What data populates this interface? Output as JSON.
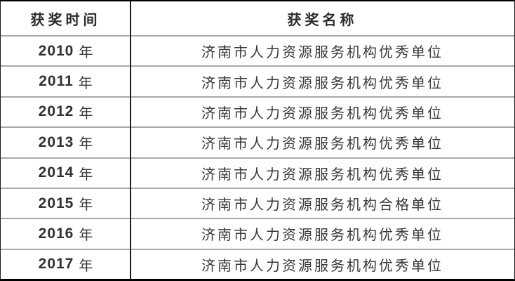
{
  "table": {
    "columns": [
      {
        "label": "获奖时间"
      },
      {
        "label": "获奖名称"
      }
    ],
    "rows": [
      {
        "year": "2010",
        "year_unit": "年",
        "award": "济南市人力资源服务机构优秀单位"
      },
      {
        "year": "2011",
        "year_unit": "年",
        "award": "济南市人力资源服务机构优秀单位"
      },
      {
        "year": "2012",
        "year_unit": "年",
        "award": "济南市人力资源服务机构优秀单位"
      },
      {
        "year": "2013",
        "year_unit": "年",
        "award": "济南市人力资源服务机构优秀单位"
      },
      {
        "year": "2014",
        "year_unit": "年",
        "award": "济南市人力资源服务机构优秀单位"
      },
      {
        "year": "2015",
        "year_unit": "年",
        "award": "济南市人力资源服务机构合格单位"
      },
      {
        "year": "2016",
        "year_unit": "年",
        "award": "济南市人力资源服务机构优秀单位"
      },
      {
        "year": "2017",
        "year_unit": "年",
        "award": "济南市人力资源服务机构优秀单位"
      }
    ]
  },
  "colors": {
    "background": "#ffffff",
    "text": "#333333",
    "outer_border": "#000000",
    "column_divider": "#1f1f1f",
    "row_gridline": "#a8a8a8"
  }
}
